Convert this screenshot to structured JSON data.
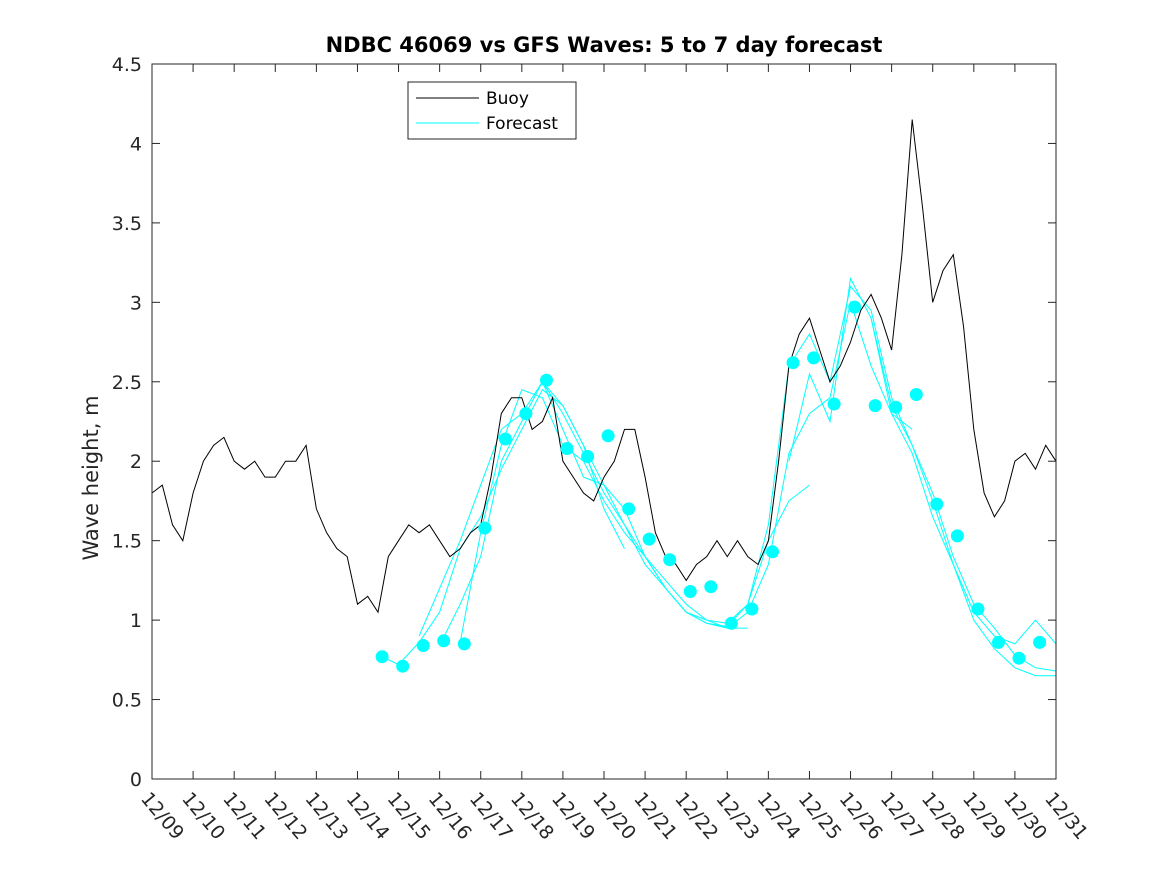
{
  "chart_data": {
    "type": "line",
    "title": "NDBC 46069 vs GFS Waves: 5 to 7 day forecast",
    "xlabel": "",
    "ylabel": "Wave height, m",
    "xlim": [
      0,
      22
    ],
    "ylim": [
      0,
      4.5
    ],
    "x_unit": "days since 12/09 00:00",
    "x_ticks": [
      0,
      1,
      2,
      3,
      4,
      5,
      6,
      7,
      8,
      9,
      10,
      11,
      12,
      13,
      14,
      15,
      16,
      17,
      18,
      19,
      20,
      21,
      22
    ],
    "x_tick_labels": [
      "12/09",
      "12/10",
      "12/11",
      "12/12",
      "12/13",
      "12/14",
      "12/15",
      "12/16",
      "12/17",
      "12/18",
      "12/19",
      "12/20",
      "12/21",
      "12/22",
      "12/23",
      "12/24",
      "12/25",
      "12/26",
      "12/27",
      "12/28",
      "12/29",
      "12/30",
      "12/31"
    ],
    "y_ticks": [
      0,
      0.5,
      1,
      1.5,
      2,
      2.5,
      3,
      3.5,
      4,
      4.5
    ],
    "y_tick_labels": [
      "0",
      "0.5",
      "1",
      "1.5",
      "2",
      "2.5",
      "3",
      "3.5",
      "4",
      "4.5"
    ],
    "legend": {
      "position": "top-center",
      "entries": [
        "Buoy",
        "Forecast"
      ]
    },
    "colors": {
      "buoy": "#000000",
      "forecast": "#00ffff",
      "axes": "#262626"
    },
    "series": [
      {
        "name": "Buoy",
        "color": "#000000",
        "x": [
          0.0,
          0.25,
          0.5,
          0.75,
          1.0,
          1.25,
          1.5,
          1.75,
          2.0,
          2.25,
          2.5,
          2.75,
          3.0,
          3.25,
          3.5,
          3.75,
          4.0,
          4.25,
          4.5,
          4.75,
          5.0,
          5.25,
          5.5,
          5.75,
          6.0,
          6.25,
          6.5,
          6.75,
          7.0,
          7.25,
          7.5,
          7.75,
          8.0,
          8.25,
          8.5,
          8.75,
          9.0,
          9.25,
          9.5,
          9.75,
          10.0,
          10.25,
          10.5,
          10.75,
          11.0,
          11.25,
          11.5,
          11.75,
          12.0,
          12.25,
          12.5,
          12.75,
          13.0,
          13.25,
          13.5,
          13.75,
          14.0,
          14.25,
          14.5,
          14.75,
          15.0,
          15.25,
          15.5,
          15.75,
          16.0,
          16.25,
          16.5,
          16.75,
          17.0,
          17.25,
          17.5,
          17.75,
          18.0,
          18.25,
          18.5,
          18.75,
          19.0,
          19.25,
          19.5,
          19.75,
          20.0,
          20.25,
          20.5,
          20.75,
          21.0,
          21.25,
          21.5,
          21.75,
          22.0
        ],
        "values": [
          1.8,
          1.85,
          1.6,
          1.5,
          1.8,
          2.0,
          2.1,
          2.15,
          2.0,
          1.95,
          2.0,
          1.9,
          1.9,
          2.0,
          2.0,
          2.1,
          1.7,
          1.55,
          1.45,
          1.4,
          1.1,
          1.15,
          1.05,
          1.4,
          1.5,
          1.6,
          1.55,
          1.6,
          1.5,
          1.4,
          1.45,
          1.55,
          1.6,
          1.9,
          2.3,
          2.4,
          2.4,
          2.2,
          2.25,
          2.4,
          2.0,
          1.9,
          1.8,
          1.75,
          1.9,
          2.0,
          2.2,
          2.2,
          1.9,
          1.55,
          1.4,
          1.35,
          1.25,
          1.35,
          1.4,
          1.5,
          1.4,
          1.5,
          1.4,
          1.35,
          1.5,
          2.0,
          2.6,
          2.8,
          2.9,
          2.7,
          2.5,
          2.6,
          2.75,
          2.95,
          3.05,
          2.9,
          2.7,
          3.3,
          4.15,
          3.6,
          3.0,
          3.2,
          3.3,
          2.85,
          2.2,
          1.8,
          1.65,
          1.75,
          2.0,
          2.05,
          1.95,
          2.1,
          2.0
        ]
      },
      {
        "name": "Forecast",
        "color": "#00ffff",
        "runs": [
          {
            "x": [
              5.6,
              6.0,
              6.5,
              7.0,
              7.5,
              8.0,
              8.5,
              9.0,
              9.5,
              10.0,
              10.5,
              11.0,
              11.5
            ],
            "values": [
              0.77,
              0.72,
              0.86,
              1.05,
              1.45,
              1.65,
              1.95,
              2.2,
              2.45,
              2.35,
              2.1,
              1.7,
              1.45
            ]
          },
          {
            "x": [
              6.5,
              7.0,
              7.5,
              8.0,
              8.5,
              9.0,
              9.5,
              10.0,
              10.5,
              11.0,
              11.5,
              12.0,
              12.5,
              13.0,
              13.5,
              14.0,
              14.5
            ],
            "values": [
              0.9,
              1.2,
              1.5,
              1.85,
              2.2,
              2.3,
              2.5,
              2.3,
              2.05,
              1.8,
              1.6,
              1.35,
              1.2,
              1.05,
              0.98,
              0.95,
              0.95
            ]
          },
          {
            "x": [
              7.0,
              7.5,
              8.0,
              8.5,
              9.0,
              9.5,
              10.0,
              10.5,
              11.0,
              11.5,
              12.0,
              12.5,
              13.0,
              13.5,
              14.0,
              14.5,
              15.0,
              15.5,
              16.0
            ],
            "values": [
              0.84,
              1.1,
              1.4,
              2.0,
              2.25,
              2.5,
              2.2,
              1.9,
              1.85,
              1.7,
              1.4,
              1.2,
              1.05,
              1.0,
              0.98,
              1.1,
              1.5,
              1.75,
              1.85
            ]
          },
          {
            "x": [
              7.5,
              8.0,
              8.5,
              9.0,
              9.5,
              10.0,
              10.5,
              11.0,
              11.5,
              12.0,
              12.5,
              13.0,
              13.5,
              14.0,
              14.5,
              15.0,
              15.5,
              16.0,
              16.5,
              17.0,
              17.5,
              18.0,
              18.5
            ],
            "values": [
              0.86,
              1.55,
              2.1,
              2.45,
              2.4,
              2.1,
              2.0,
              1.75,
              1.55,
              1.4,
              1.25,
              1.1,
              1.0,
              0.95,
              1.05,
              1.35,
              2.05,
              2.3,
              2.4,
              3.0,
              2.6,
              2.3,
              2.2
            ]
          },
          {
            "x": [
              9.5,
              10.0,
              10.5,
              11.0,
              11.5,
              12.0,
              12.5,
              13.0,
              13.5,
              14.0,
              14.5,
              15.0,
              15.5,
              16.0,
              16.5,
              17.0,
              17.5,
              18.0,
              18.5,
              19.0,
              19.5,
              20.0,
              20.5,
              21.0,
              21.5,
              22.0
            ],
            "values": [
              2.5,
              2.35,
              2.1,
              1.85,
              1.6,
              1.4,
              1.2,
              1.05,
              0.98,
              0.96,
              1.1,
              1.6,
              2.6,
              2.8,
              2.5,
              3.1,
              2.95,
              2.4,
              2.1,
              1.75,
              1.35,
              1.0,
              0.82,
              0.7,
              0.65,
              0.65
            ]
          },
          {
            "x": [
              15.5,
              16.0,
              16.5,
              17.0,
              17.5,
              18.0,
              18.5,
              19.0,
              19.5,
              20.0,
              20.5,
              21.0,
              21.5,
              22.0
            ],
            "values": [
              2.0,
              2.55,
              2.25,
              3.15,
              2.9,
              2.35,
              2.1,
              1.8,
              1.4,
              1.1,
              0.95,
              0.78,
              0.7,
              0.68
            ]
          },
          {
            "x": [
              17.5,
              18.0,
              18.5,
              19.0,
              19.5,
              20.0,
              20.5,
              21.0,
              21.5,
              22.0
            ],
            "values": [
              2.9,
              2.3,
              2.05,
              1.65,
              1.35,
              1.05,
              0.9,
              0.85,
              1.0,
              0.85
            ]
          }
        ],
        "markers": {
          "x": [
            5.6,
            6.1,
            6.6,
            7.1,
            7.6,
            8.1,
            8.6,
            9.1,
            9.6,
            10.1,
            10.6,
            11.1,
            11.6,
            12.1,
            12.6,
            13.1,
            13.6,
            14.1,
            14.6,
            15.1,
            15.6,
            16.1,
            16.6,
            17.1,
            17.6,
            18.1,
            18.6,
            19.1,
            19.6,
            20.1,
            20.6,
            21.1,
            21.6
          ],
          "values": [
            0.77,
            0.71,
            0.84,
            0.87,
            0.85,
            1.58,
            2.14,
            2.3,
            2.51,
            2.08,
            2.03,
            2.16,
            1.7,
            1.51,
            1.38,
            1.18,
            1.21,
            0.98,
            1.07,
            1.43,
            2.62,
            2.65,
            2.36,
            2.97,
            2.35,
            2.34,
            2.42,
            1.73,
            1.53,
            1.07,
            0.86,
            0.76,
            0.86
          ]
        }
      }
    ]
  }
}
